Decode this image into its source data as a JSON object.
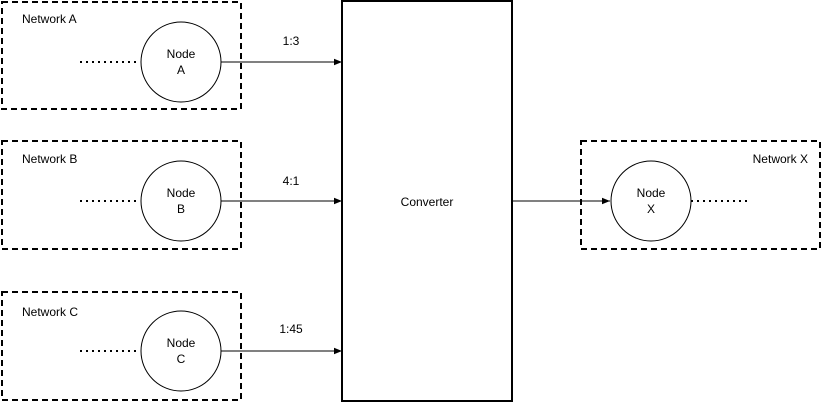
{
  "networks": [
    {
      "label": "Network A",
      "node": {
        "line1": "Node",
        "line2": "A"
      },
      "ratio": "1:3"
    },
    {
      "label": "Network B",
      "node": {
        "line1": "Node",
        "line2": "B"
      },
      "ratio": "4:1"
    },
    {
      "label": "Network C",
      "node": {
        "line1": "Node",
        "line2": "C"
      },
      "ratio": "1:45"
    }
  ],
  "converter": {
    "label": "Converter"
  },
  "target": {
    "label": "Network X",
    "node": {
      "line1": "Node",
      "line2": "X"
    }
  },
  "colors": {
    "stroke": "#000000",
    "background": "#ffffff"
  }
}
